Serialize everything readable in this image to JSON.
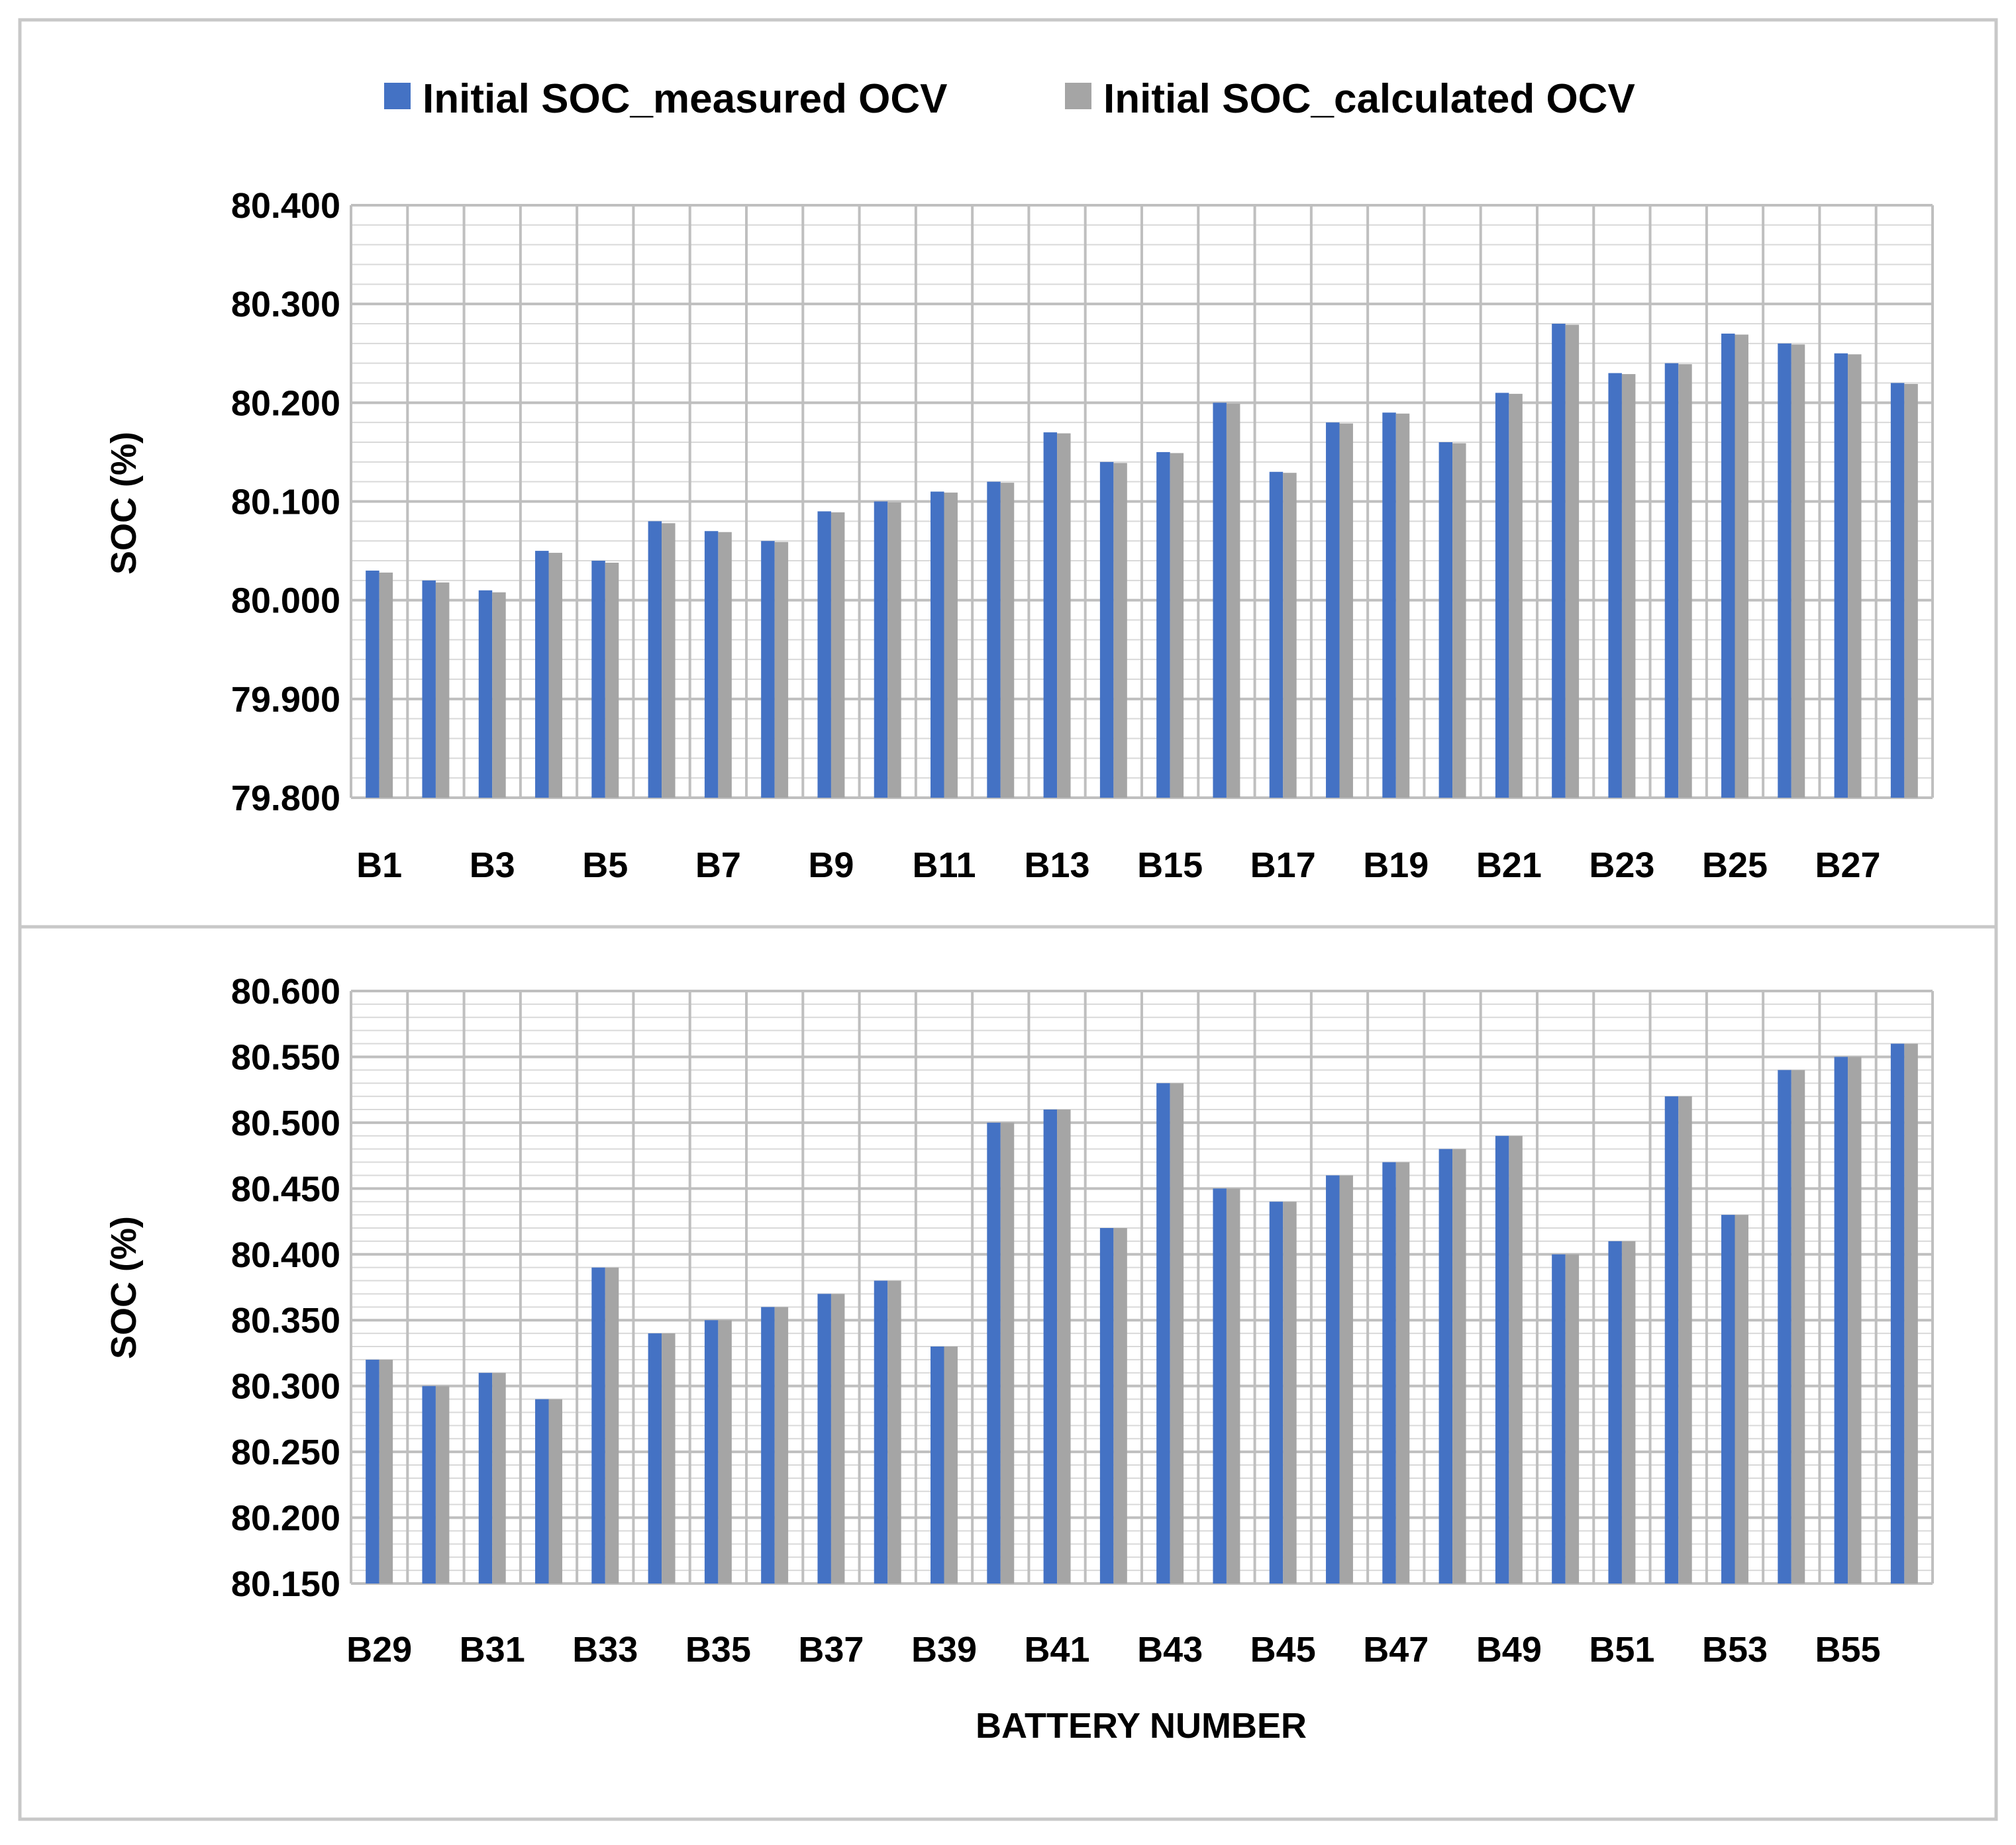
{
  "legend": {
    "measured": "Initial SOC_measured OCV",
    "calculated": "Initial SOC_calculated OCV"
  },
  "colors": {
    "measured": "#4472C4",
    "calculated": "#A5A5A5"
  },
  "chart_data": [
    {
      "type": "bar",
      "title": "",
      "xlabel": "",
      "ylabel": "SOC (%)",
      "ylim": [
        79.8,
        80.4
      ],
      "ytick_labels": [
        "79.800",
        "79.900",
        "80.000",
        "80.100",
        "80.200",
        "80.300",
        "80.400"
      ],
      "categories": [
        "B1",
        "B2",
        "B3",
        "B4",
        "B5",
        "B6",
        "B7",
        "B8",
        "B9",
        "B10",
        "B11",
        "B12",
        "B13",
        "B14",
        "B15",
        "B16",
        "B17",
        "B18",
        "B19",
        "B20",
        "B21",
        "B22",
        "B23",
        "B24",
        "B25",
        "B26",
        "B27",
        "B28"
      ],
      "xtick_labels": [
        "B1",
        "B3",
        "B5",
        "B7",
        "B9",
        "B11",
        "B13",
        "B15",
        "B17",
        "B19",
        "B21",
        "B23",
        "B25",
        "B27"
      ],
      "series": [
        {
          "name": "Initial SOC_measured OCV",
          "values": [
            80.03,
            80.02,
            80.01,
            80.05,
            80.04,
            80.08,
            80.07,
            80.06,
            80.09,
            80.1,
            80.11,
            80.12,
            80.17,
            80.14,
            80.15,
            80.2,
            80.13,
            80.18,
            80.19,
            80.16,
            80.21,
            80.28,
            80.23,
            80.24,
            80.27,
            80.26,
            80.25,
            80.22
          ]
        },
        {
          "name": "Initial SOC_calculated OCV",
          "values": [
            80.028,
            80.018,
            80.008,
            80.048,
            80.038,
            80.078,
            80.069,
            80.059,
            80.089,
            80.099,
            80.109,
            80.119,
            80.169,
            80.139,
            80.149,
            80.199,
            80.129,
            80.179,
            80.189,
            80.159,
            80.209,
            80.279,
            80.229,
            80.239,
            80.269,
            80.259,
            80.249,
            80.219
          ]
        }
      ]
    },
    {
      "type": "bar",
      "title": "",
      "xlabel": "BATTERY NUMBER",
      "ylabel": "SOC (%)",
      "ylim": [
        80.15,
        80.6
      ],
      "ytick_labels": [
        "80.150",
        "80.200",
        "80.250",
        "80.300",
        "80.350",
        "80.400",
        "80.450",
        "80.500",
        "80.550",
        "80.600"
      ],
      "categories": [
        "B29",
        "B30",
        "B31",
        "B32",
        "B33",
        "B34",
        "B35",
        "B36",
        "B37",
        "B38",
        "B39",
        "B40",
        "B41",
        "B42",
        "B43",
        "B44",
        "B45",
        "B46",
        "B47",
        "B48",
        "B49",
        "B50",
        "B51",
        "B52",
        "B53",
        "B54",
        "B55",
        "B56"
      ],
      "xtick_labels": [
        "B29",
        "B31",
        "B33",
        "B35",
        "B37",
        "B39",
        "B41",
        "B43",
        "B45",
        "B47",
        "B49",
        "B51",
        "B53",
        "B55"
      ],
      "series": [
        {
          "name": "Initial SOC_measured OCV",
          "values": [
            80.32,
            80.3,
            80.31,
            80.29,
            80.39,
            80.34,
            80.35,
            80.36,
            80.37,
            80.38,
            80.33,
            80.5,
            80.51,
            80.42,
            80.53,
            80.45,
            80.44,
            80.46,
            80.47,
            80.48,
            80.49,
            80.4,
            80.41,
            80.52,
            80.43,
            80.54,
            80.55,
            80.56
          ]
        },
        {
          "name": "Initial SOC_calculated OCV",
          "values": [
            80.32,
            80.3,
            80.31,
            80.29,
            80.39,
            80.34,
            80.35,
            80.36,
            80.37,
            80.38,
            80.33,
            80.5,
            80.51,
            80.42,
            80.53,
            80.45,
            80.44,
            80.46,
            80.47,
            80.48,
            80.49,
            80.4,
            80.41,
            80.52,
            80.43,
            80.54,
            80.55,
            80.56
          ]
        }
      ]
    }
  ]
}
